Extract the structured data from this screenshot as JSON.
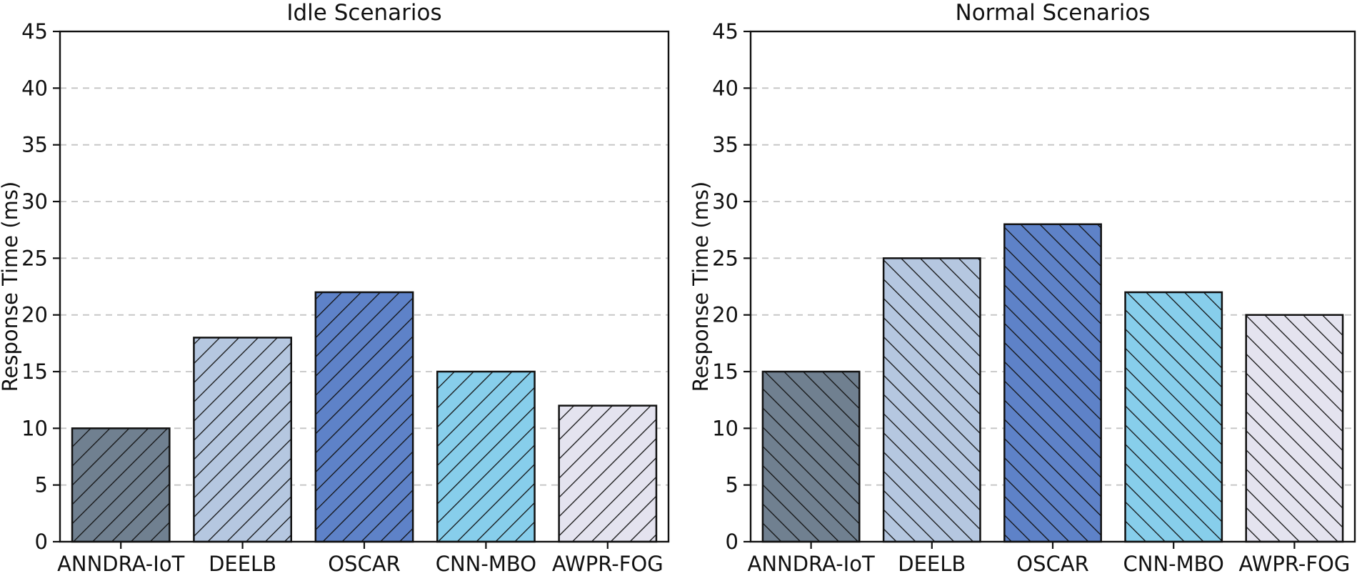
{
  "figure": {
    "background": "#ffffff"
  },
  "style": {
    "bar_colors": [
      "#708090",
      "#b5c7e0",
      "#5e82c8",
      "#87ceeb",
      "#e4e3ef"
    ],
    "bar_edge_color": "#111111",
    "hatch_color": "#111111",
    "grid_color": "#c4c4c4",
    "axis_color": "#111111",
    "text_color": "#111111"
  },
  "chart_data": [
    {
      "type": "bar",
      "title": "Idle Scenarios",
      "categories": [
        "ANNDRA-IoT",
        "DEELB",
        "OSCAR",
        "CNN-MBO",
        "AWPR-FOG"
      ],
      "values": [
        10,
        18,
        22,
        15,
        12
      ],
      "xlabel": "",
      "ylabel": "Response Time (ms)",
      "ylim": [
        0,
        45
      ],
      "yticks": [
        0,
        5,
        10,
        15,
        20,
        25,
        30,
        35,
        40,
        45
      ],
      "grid": "horizontal-dashed",
      "legend": "none",
      "hatch": "/"
    },
    {
      "type": "bar",
      "title": "Normal Scenarios",
      "categories": [
        "ANNDRA-IoT",
        "DEELB",
        "OSCAR",
        "CNN-MBO",
        "AWPR-FOG"
      ],
      "values": [
        15,
        25,
        28,
        22,
        20
      ],
      "xlabel": "",
      "ylabel": "Response Time (ms)",
      "ylim": [
        0,
        45
      ],
      "yticks": [
        0,
        5,
        10,
        15,
        20,
        25,
        30,
        35,
        40,
        45
      ],
      "grid": "horizontal-dashed",
      "legend": "none",
      "hatch": "\\"
    }
  ]
}
